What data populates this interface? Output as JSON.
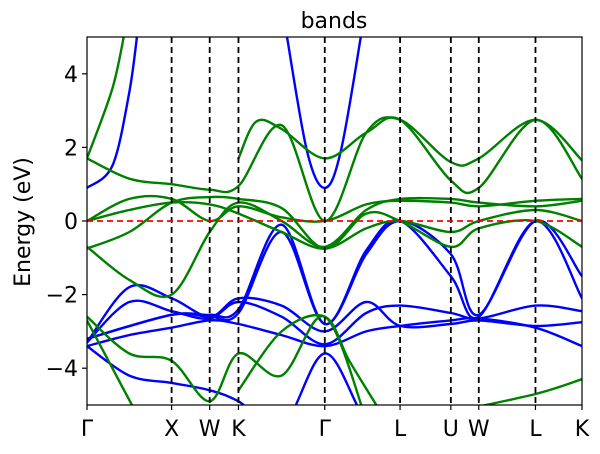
{
  "chart_data": {
    "type": "line",
    "title": "bands",
    "xlabel": "",
    "ylabel": "Energy (eV)",
    "ylim": [
      -5,
      5
    ],
    "yticks": [
      {
        "value": -4,
        "label": "−4"
      },
      {
        "value": -2,
        "label": "−2"
      },
      {
        "value": 0,
        "label": "0"
      },
      {
        "value": 2,
        "label": "2"
      },
      {
        "value": 4,
        "label": "4"
      }
    ],
    "kpoints": [
      {
        "label": "Γ",
        "x": 0
      },
      {
        "label": "X",
        "x": 1
      },
      {
        "label": "W",
        "x": 1.45
      },
      {
        "label": "K",
        "x": 1.79
      },
      {
        "label": "Γ",
        "x": 2.81
      },
      {
        "label": "L",
        "x": 3.7
      },
      {
        "label": "U",
        "x": 4.3
      },
      {
        "label": "W",
        "x": 4.63
      },
      {
        "label": "L",
        "x": 5.3
      },
      {
        "label": "K",
        "x": 5.85
      }
    ],
    "xlim": [
      0,
      5.85
    ],
    "grid": false,
    "fermi_level": 0,
    "colors": {
      "series_1": "#0000ff",
      "series_2": "#008000",
      "fermi": "#ff0000",
      "kline": "#000000"
    },
    "series": [
      {
        "color": "series_1",
        "bands": [
          [
            [
              0,
              -3.4
            ],
            [
              0.5,
              -4.2
            ],
            [
              1,
              -4.4
            ],
            [
              1.45,
              -4.6
            ],
            [
              1.79,
              -4.9
            ],
            [
              2.3,
              -5.6
            ],
            [
              2.81,
              -3.6
            ],
            [
              3.3,
              -5.4
            ],
            [
              3.7,
              -5.6
            ]
          ],
          [
            [
              0,
              -3.4
            ],
            [
              0.5,
              -3.1
            ],
            [
              1,
              -2.9
            ],
            [
              1.45,
              -2.7
            ],
            [
              1.79,
              -2.8
            ],
            [
              2.3,
              -3.1
            ],
            [
              2.81,
              -3.4
            ],
            [
              3.3,
              -3.0
            ],
            [
              3.7,
              -2.85
            ],
            [
              4.3,
              -2.7
            ],
            [
              4.63,
              -2.65
            ],
            [
              5.3,
              -2.9
            ],
            [
              5.85,
              -3.4
            ]
          ],
          [
            [
              0,
              -3.3
            ],
            [
              0.5,
              -2.2
            ],
            [
              1,
              -2.45
            ],
            [
              1.45,
              -2.65
            ],
            [
              1.79,
              -2.2
            ],
            [
              2.3,
              -2.6
            ],
            [
              2.81,
              -3.35
            ],
            [
              3.3,
              -2.5
            ],
            [
              3.7,
              -2.3
            ],
            [
              4.3,
              -2.5
            ],
            [
              4.63,
              -2.65
            ],
            [
              5.3,
              -2.3
            ],
            [
              5.85,
              -2.45
            ]
          ],
          [
            [
              0,
              -3.3
            ],
            [
              0.5,
              -1.8
            ],
            [
              1,
              -2.1
            ],
            [
              1.45,
              -2.6
            ],
            [
              1.79,
              -2.1
            ],
            [
              2.3,
              -2.3
            ],
            [
              2.81,
              -3.0
            ],
            [
              3.3,
              -2.2
            ],
            [
              3.7,
              -2.85
            ],
            [
              4.3,
              -2.8
            ],
            [
              4.63,
              -2.7
            ],
            [
              5.3,
              -2.85
            ],
            [
              5.85,
              -2.75
            ]
          ],
          [
            [
              0,
              -3.2
            ],
            [
              1,
              -2.55
            ],
            [
              1.45,
              -2.55
            ],
            [
              1.79,
              -2.4
            ],
            [
              2.3,
              -0.1
            ],
            [
              2.81,
              -2.8
            ],
            [
              3.3,
              -0.8
            ],
            [
              3.7,
              0.0
            ],
            [
              4.3,
              -1.5
            ],
            [
              4.63,
              -2.6
            ],
            [
              5.3,
              0.0
            ],
            [
              5.85,
              -2.1
            ]
          ],
          [
            [
              0,
              -3.2
            ],
            [
              1,
              -2.55
            ],
            [
              1.45,
              -2.6
            ],
            [
              1.79,
              -2.5
            ],
            [
              2.3,
              -0.3
            ],
            [
              2.81,
              -2.8
            ],
            [
              3.3,
              -0.9
            ],
            [
              3.7,
              0.0
            ],
            [
              4.3,
              -0.9
            ],
            [
              4.63,
              -2.55
            ],
            [
              5.3,
              0.0
            ],
            [
              5.85,
              -1.5
            ]
          ],
          [
            [
              0,
              0.9
            ],
            [
              0.3,
              1.5
            ],
            [
              0.5,
              3.5
            ],
            [
              0.6,
              5.2
            ]
          ],
          [
            [
              2.35,
              5.2
            ],
            [
              2.6,
              1.9
            ],
            [
              2.81,
              0.9
            ],
            [
              3.0,
              1.9
            ],
            [
              3.25,
              5.2
            ]
          ]
        ]
      },
      {
        "color": "series_2",
        "bands": [
          [
            [
              0,
              0.0
            ],
            [
              0.5,
              0.3
            ],
            [
              1,
              0.5
            ],
            [
              1.45,
              0.45
            ],
            [
              1.79,
              0.2
            ],
            [
              2.3,
              -0.3
            ],
            [
              2.81,
              -0.75
            ],
            [
              3.3,
              -0.2
            ],
            [
              3.7,
              0.0
            ],
            [
              4.3,
              -0.3
            ],
            [
              4.63,
              0.0
            ],
            [
              5.3,
              0.3
            ],
            [
              5.85,
              0.0
            ]
          ],
          [
            [
              0,
              0.0
            ],
            [
              0.5,
              0.6
            ],
            [
              1,
              0.6
            ],
            [
              1.45,
              0.0
            ],
            [
              1.79,
              0.4
            ],
            [
              2.3,
              0.1
            ],
            [
              2.81,
              0.0
            ],
            [
              3.3,
              0.45
            ],
            [
              3.7,
              0.55
            ],
            [
              4.3,
              0.5
            ],
            [
              4.63,
              0.4
            ],
            [
              5.3,
              0.55
            ],
            [
              5.85,
              0.6
            ]
          ],
          [
            [
              0,
              -0.7
            ],
            [
              0.5,
              -1.6
            ],
            [
              1,
              -2.0
            ],
            [
              1.45,
              -0.3
            ],
            [
              1.79,
              0.5
            ],
            [
              2.3,
              0.0
            ],
            [
              2.81,
              -0.7
            ],
            [
              3.3,
              0.3
            ],
            [
              3.7,
              0.6
            ],
            [
              4.3,
              0.6
            ],
            [
              4.63,
              0.5
            ],
            [
              5.3,
              0.4
            ],
            [
              5.85,
              0.55
            ]
          ],
          [
            [
              0,
              -0.75
            ],
            [
              0.5,
              -0.3
            ],
            [
              1,
              0.5
            ],
            [
              1.45,
              0.65
            ],
            [
              1.79,
              0.6
            ],
            [
              2.3,
              0.35
            ],
            [
              2.81,
              -0.75
            ],
            [
              3.3,
              0.2
            ],
            [
              3.7,
              0.0
            ],
            [
              4.3,
              -0.7
            ],
            [
              4.63,
              -0.2
            ],
            [
              5.3,
              0.0
            ],
            [
              5.85,
              -0.7
            ]
          ],
          [
            [
              0,
              1.7
            ],
            [
              0.5,
              1.15
            ],
            [
              1,
              1.0
            ],
            [
              1.45,
              0.85
            ],
            [
              1.79,
              0.95
            ],
            [
              2.3,
              2.6
            ],
            [
              2.81,
              0.0
            ],
            [
              3.3,
              2.4
            ],
            [
              3.7,
              2.75
            ],
            [
              4.3,
              1.6
            ],
            [
              4.63,
              1.7
            ],
            [
              5.3,
              2.75
            ],
            [
              5.85,
              1.65
            ]
          ],
          [
            [
              0,
              1.7
            ],
            [
              0.3,
              3.6
            ],
            [
              0.45,
              5.2
            ]
          ],
          [
            [
              1.79,
              1.7
            ],
            [
              2.0,
              2.7
            ],
            [
              2.3,
              2.5
            ],
            [
              2.81,
              1.7
            ],
            [
              3.3,
              2.4
            ],
            [
              3.7,
              2.75
            ],
            [
              4.3,
              1.1
            ],
            [
              4.63,
              0.9
            ],
            [
              5.3,
              2.75
            ],
            [
              5.85,
              1.15
            ]
          ],
          [
            [
              0,
              -2.6
            ],
            [
              0.5,
              -3.6
            ],
            [
              1,
              -3.8
            ],
            [
              1.45,
              -4.9
            ],
            [
              1.79,
              -3.6
            ],
            [
              2.3,
              -4.2
            ],
            [
              2.81,
              -2.6
            ],
            [
              3.3,
              -5.4
            ]
          ],
          [
            [
              0,
              -2.7
            ],
            [
              0.3,
              -4.0
            ],
            [
              0.6,
              -5.3
            ]
          ],
          [
            [
              1.79,
              -4.6
            ],
            [
              2.3,
              -3.0
            ],
            [
              2.81,
              -2.6
            ],
            [
              3.1,
              -3.8
            ],
            [
              3.5,
              -5.3
            ]
          ],
          [
            [
              4.3,
              -5.2
            ],
            [
              5.3,
              -4.7
            ],
            [
              5.85,
              -4.3
            ]
          ]
        ]
      }
    ]
  }
}
